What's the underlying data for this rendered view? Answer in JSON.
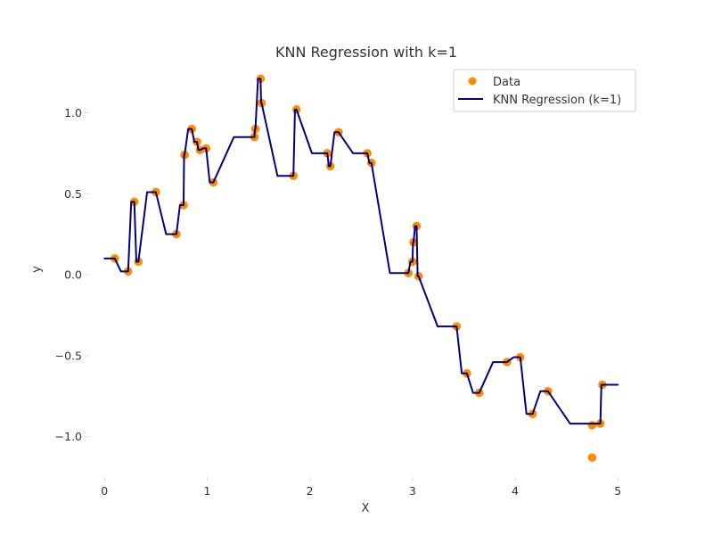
{
  "colors": {
    "background": "#ffffff",
    "scatter": "#ff8c00",
    "line": "#000080",
    "text": "#333333",
    "legend_border": "#cccccc"
  },
  "chart_data": {
    "type": "scatter",
    "title": "KNN Regression with k=1",
    "xlabel": "X",
    "ylabel": "y",
    "xlim": [
      -0.15,
      5.25
    ],
    "ylim": [
      -1.25,
      1.3
    ],
    "xticks": [
      0,
      1,
      2,
      3,
      4,
      5
    ],
    "xtick_labels": [
      "0",
      "1",
      "2",
      "3",
      "4",
      "5"
    ],
    "yticks": [
      -1.0,
      -0.5,
      0.0,
      0.5,
      1.0
    ],
    "ytick_labels": [
      "−1.0",
      "−0.5",
      "0.0",
      "0.5",
      "1.0"
    ],
    "grid": false,
    "legend_position": "upper-right",
    "legend": [
      {
        "label": "Data",
        "marker": "circle",
        "color": "#ff8c00"
      },
      {
        "label": "KNN Regression (k=1)",
        "marker": "line",
        "color": "#000080"
      }
    ],
    "series": [
      {
        "name": "Data",
        "kind": "scatter",
        "color": "#ff8c00",
        "x": [
          0.1,
          0.23,
          0.29,
          0.33,
          0.5,
          0.7,
          0.77,
          0.78,
          0.85,
          0.9,
          0.93,
          0.99,
          1.06,
          1.46,
          1.47,
          1.52,
          1.53,
          1.84,
          1.87,
          2.17,
          2.2,
          2.28,
          2.56,
          2.6,
          2.96,
          3.0,
          3.01,
          3.04,
          3.06,
          3.43,
          3.53,
          3.65,
          3.92,
          4.05,
          4.17,
          4.32,
          4.75,
          4.75,
          4.83,
          4.85
        ],
        "y": [
          0.1,
          0.02,
          0.45,
          0.08,
          0.51,
          0.25,
          0.43,
          0.74,
          0.9,
          0.82,
          0.77,
          0.78,
          0.57,
          0.85,
          0.9,
          1.21,
          1.06,
          0.61,
          1.02,
          0.75,
          0.67,
          0.88,
          0.75,
          0.69,
          0.01,
          0.08,
          0.2,
          0.3,
          -0.01,
          -0.32,
          -0.61,
          -0.73,
          -0.54,
          -0.51,
          -0.86,
          -0.72,
          -0.93,
          -1.13,
          -0.92,
          -0.68
        ]
      },
      {
        "name": "KNN Regression (k=1)",
        "kind": "step",
        "color": "#000080",
        "x": [
          0,
          0.1,
          0.16,
          0.23,
          0.26,
          0.29,
          0.31,
          0.33,
          0.415,
          0.5,
          0.6,
          0.7,
          0.735,
          0.77,
          0.775,
          0.78,
          0.815,
          0.85,
          0.875,
          0.9,
          0.915,
          0.93,
          0.96,
          0.99,
          1.025,
          1.06,
          1.26,
          1.46,
          1.465,
          1.47,
          1.495,
          1.52,
          1.525,
          1.53,
          1.685,
          1.84,
          1.855,
          1.87,
          2.02,
          2.17,
          2.185,
          2.2,
          2.24,
          2.28,
          2.42,
          2.56,
          2.58,
          2.6,
          2.78,
          2.96,
          2.98,
          3.0,
          3.005,
          3.01,
          3.025,
          3.04,
          3.05,
          3.06,
          3.245,
          3.43,
          3.48,
          3.53,
          3.59,
          3.65,
          3.785,
          3.92,
          3.985,
          4.05,
          4.11,
          4.17,
          4.245,
          4.32,
          4.535,
          4.75,
          4.79,
          4.83,
          4.84,
          4.85,
          5.0
        ],
        "y": [
          0.1,
          0.1,
          0.02,
          0.02,
          0.45,
          0.45,
          0.08,
          0.08,
          0.51,
          0.51,
          0.25,
          0.25,
          0.43,
          0.43,
          0.74,
          0.74,
          0.9,
          0.9,
          0.82,
          0.82,
          0.77,
          0.77,
          0.78,
          0.78,
          0.57,
          0.57,
          0.85,
          0.85,
          0.9,
          0.9,
          1.21,
          1.21,
          1.06,
          1.06,
          0.61,
          0.61,
          1.02,
          1.02,
          0.75,
          0.75,
          0.67,
          0.67,
          0.88,
          0.88,
          0.75,
          0.75,
          0.69,
          0.69,
          0.01,
          0.01,
          0.08,
          0.08,
          0.2,
          0.2,
          0.3,
          0.3,
          -0.01,
          -0.01,
          -0.32,
          -0.32,
          -0.61,
          -0.61,
          -0.73,
          -0.73,
          -0.54,
          -0.54,
          -0.51,
          -0.51,
          -0.86,
          -0.86,
          -0.72,
          -0.72,
          -0.92,
          -0.92,
          -0.92,
          -0.92,
          -0.68,
          -0.68,
          -0.68
        ]
      }
    ]
  }
}
